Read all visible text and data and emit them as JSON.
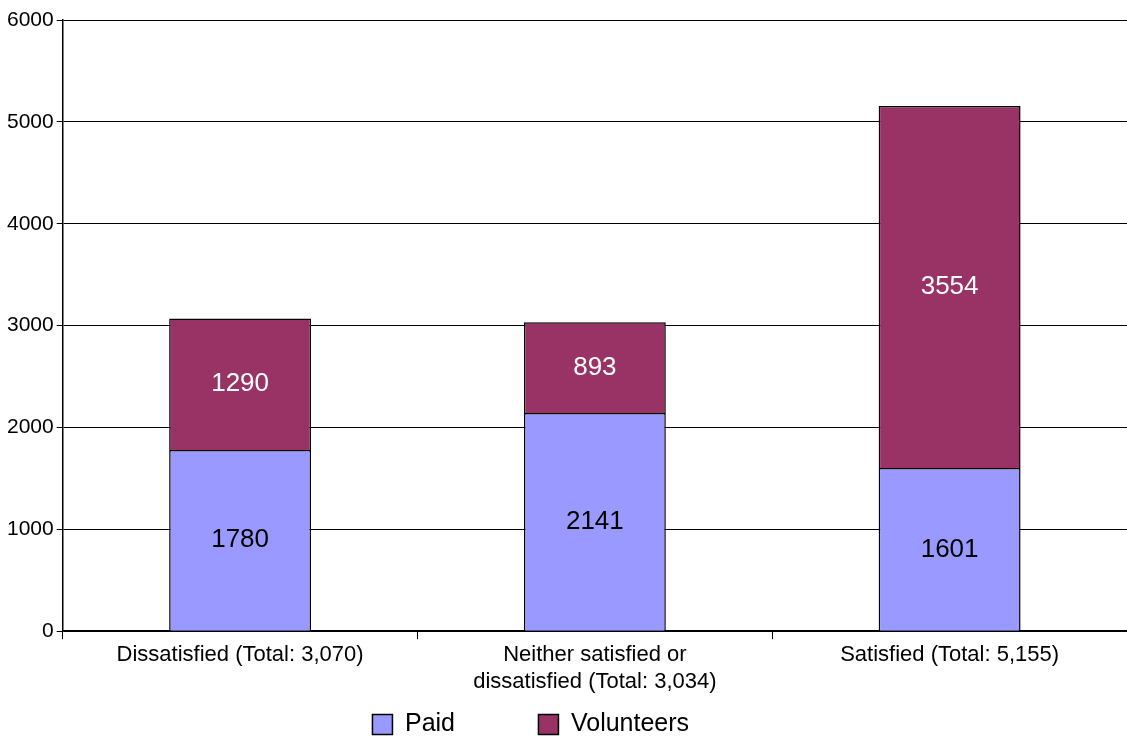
{
  "chart_data": {
    "type": "bar",
    "stacked": true,
    "categories": [
      "Dissatisfied (Total: 3,070)",
      "Neither satisfied or dissatisfied (Total: 3,034)",
      "Satisfied (Total: 5,155)"
    ],
    "series": [
      {
        "name": "Paid",
        "color": "#9999ff",
        "values": [
          1780,
          2141,
          1601
        ]
      },
      {
        "name": "Volunteers",
        "color": "#993366",
        "values": [
          1290,
          893,
          3554
        ]
      }
    ],
    "ylim": [
      0,
      6000
    ],
    "yticks": [
      0,
      1000,
      2000,
      3000,
      4000,
      5000,
      6000
    ],
    "grid": "y",
    "legend": "bottom",
    "data_labels": true
  }
}
